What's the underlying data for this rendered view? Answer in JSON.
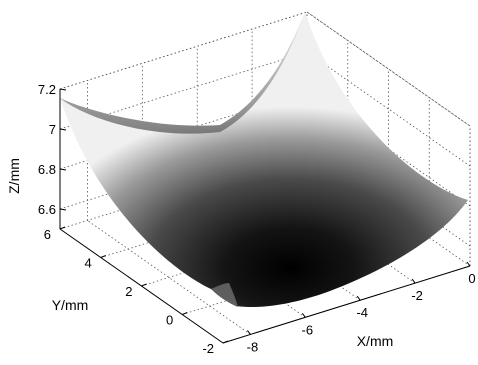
{
  "chart_data": {
    "type": "surface",
    "xlabel": "X/mm",
    "ylabel": "Y/mm",
    "zlabel": "Z/mm",
    "colormap": "gray",
    "grid": true,
    "xlim": [
      -9,
      0
    ],
    "ylim": [
      -2,
      6
    ],
    "zlim": [
      6.5,
      7.2
    ],
    "x_ticks": [
      "-8",
      "-6",
      "-4",
      "-2",
      "0"
    ],
    "y_ticks": [
      "-2",
      "0",
      "2",
      "4",
      "6"
    ],
    "z_ticks": [
      "6.6",
      "6.8",
      "7",
      "7.2"
    ],
    "surface": {
      "vertex": {
        "x": -5.0,
        "y": 2.0,
        "z": 6.5
      },
      "corners": [
        {
          "x": -9,
          "y": 6,
          "z": 7.13
        },
        {
          "x": 0,
          "y": 6,
          "z": 7.26
        },
        {
          "x": 0,
          "y": -2,
          "z": 6.9
        },
        {
          "x": -9,
          "y": -2,
          "z": 6.78
        }
      ]
    }
  }
}
